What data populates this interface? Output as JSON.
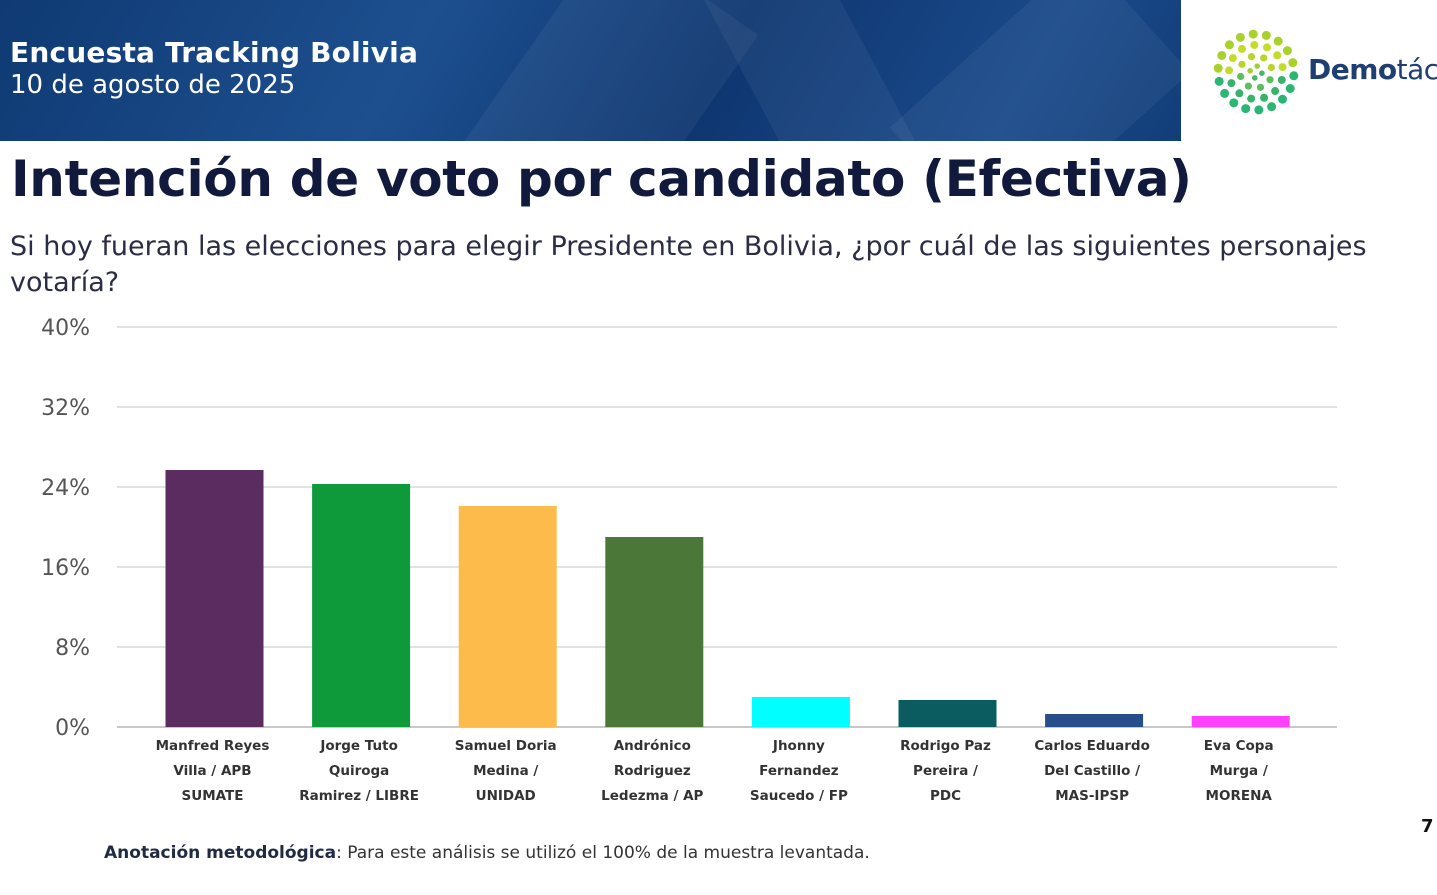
{
  "header": {
    "title": "Encuesta Tracking Bolivia",
    "date": "10 de agosto de 2025",
    "logo_text_bold": "Demo",
    "logo_text_light": "táctica"
  },
  "page": {
    "heading": "Intención de voto por candidato (Efectiva)",
    "question": "Si hoy fueran las elecciones para elegir Presidente en Bolivia, ¿por cuál de las siguientes personajes votaría?",
    "note_label": "Anotación metodológica",
    "note_text": ": Para este análisis se utilizó el 100% de la muestra levantada.",
    "page_number": "7"
  },
  "chart_data": {
    "type": "bar",
    "ylim": [
      0,
      40
    ],
    "yticks": [
      "0%",
      "8%",
      "16%",
      "24%",
      "32%",
      "40%"
    ],
    "grid": true,
    "categories": [
      [
        "Manfred Reyes",
        "Villa / APB",
        "SUMATE"
      ],
      [
        "Jorge Tuto",
        "Quiroga",
        "Ramirez / LIBRE"
      ],
      [
        "Samuel Doria",
        "Medina /",
        "UNIDAD"
      ],
      [
        "Andrónico",
        "Rodriguez",
        "Ledezma / AP"
      ],
      [
        "Jhonny",
        "Fernandez",
        "Saucedo / FP"
      ],
      [
        "Rodrigo Paz",
        "Pereira /",
        "PDC"
      ],
      [
        "Carlos Eduardo",
        "Del Castillo /",
        "MAS-IPSP"
      ],
      [
        "Eva Copa",
        "Murga /",
        "MORENA"
      ]
    ],
    "values": [
      25.7,
      24.3,
      22.1,
      19.0,
      3.0,
      2.7,
      1.3,
      1.1
    ],
    "colors": [
      "#5b2c5f",
      "#0e9a3a",
      "#fdbb4c",
      "#4b7838",
      "#00ffff",
      "#0b5c61",
      "#274e8a",
      "#ff40ff"
    ]
  }
}
